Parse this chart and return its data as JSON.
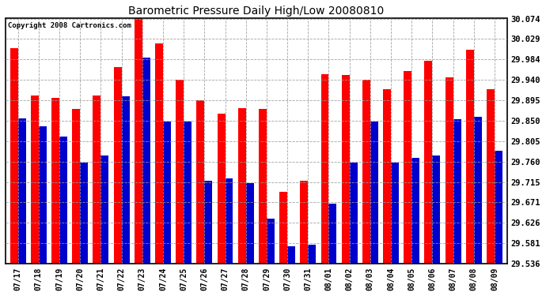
{
  "title": "Barometric Pressure Daily High/Low 20080810",
  "copyright": "Copyright 2008 Cartronics.com",
  "dates": [
    "07/17",
    "07/18",
    "07/19",
    "07/20",
    "07/21",
    "07/22",
    "07/23",
    "07/24",
    "07/25",
    "07/26",
    "07/27",
    "07/28",
    "07/29",
    "07/30",
    "07/31",
    "08/01",
    "08/02",
    "08/03",
    "08/04",
    "08/05",
    "08/06",
    "08/07",
    "08/08",
    "08/09"
  ],
  "highs": [
    30.009,
    29.905,
    29.9,
    29.875,
    29.905,
    29.968,
    30.074,
    30.02,
    29.94,
    29.895,
    29.865,
    29.878,
    29.875,
    29.693,
    29.718,
    29.952,
    29.95,
    29.94,
    29.918,
    29.958,
    29.982,
    29.945,
    30.006,
    29.918
  ],
  "lows": [
    29.855,
    29.838,
    29.815,
    29.757,
    29.773,
    29.903,
    29.988,
    29.848,
    29.848,
    29.718,
    29.723,
    29.713,
    29.634,
    29.574,
    29.578,
    29.668,
    29.758,
    29.848,
    29.758,
    29.768,
    29.773,
    29.853,
    29.858,
    29.783
  ],
  "high_color": "#ff0000",
  "low_color": "#0000cc",
  "bg_color": "#ffffff",
  "grid_color": "#999999",
  "yticks": [
    29.536,
    29.581,
    29.626,
    29.671,
    29.715,
    29.76,
    29.805,
    29.85,
    29.895,
    29.94,
    29.984,
    30.029,
    30.074
  ],
  "ymin": 29.536,
  "ymax": 30.074,
  "bar_width": 0.38
}
